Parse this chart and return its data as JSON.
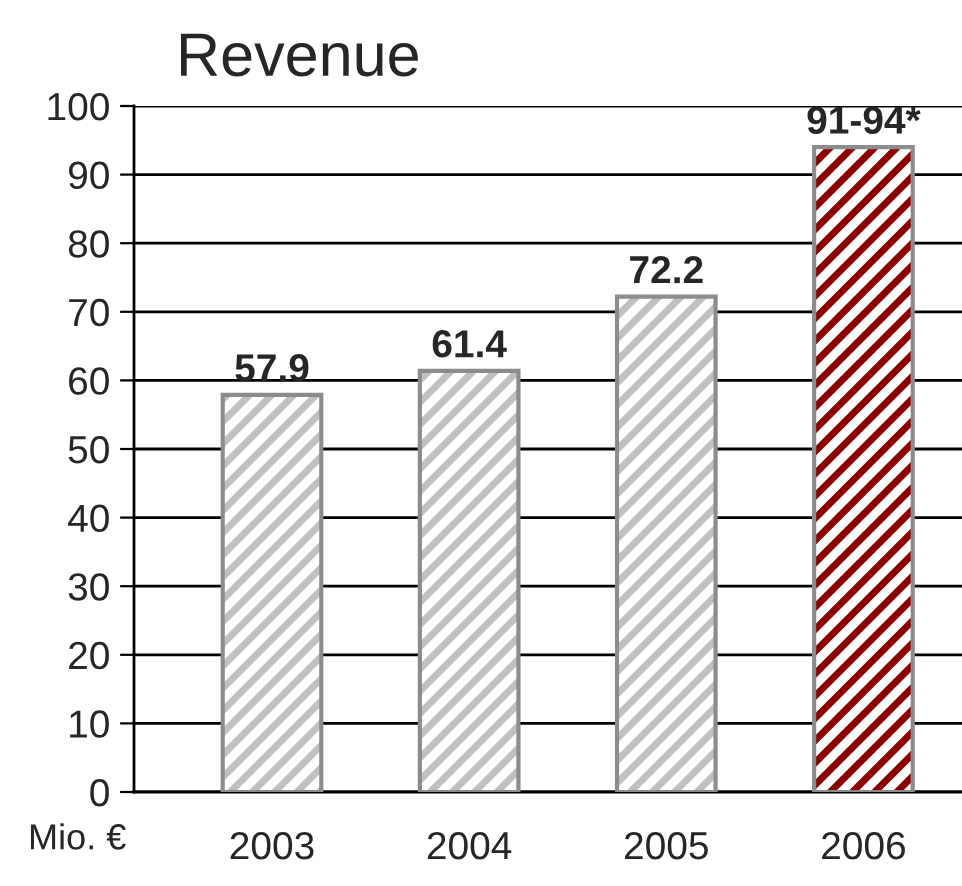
{
  "chart_data": {
    "type": "bar",
    "title": "Revenue",
    "categories": [
      "2003",
      "2004",
      "2005",
      "2006"
    ],
    "values": [
      57.9,
      61.4,
      72.2,
      94
    ],
    "value_labels": [
      "57.9",
      "61.4",
      "72.2",
      "91-94*"
    ],
    "colors": [
      "#c0c0c0",
      "#c0c0c0",
      "#c0c0c0",
      "#8b0000"
    ],
    "ylim": [
      0,
      100
    ],
    "yticks": [
      0,
      10,
      20,
      30,
      40,
      50,
      60,
      70,
      80,
      90,
      100
    ],
    "grid": "y",
    "annotations": [
      "Mio. €"
    ]
  }
}
